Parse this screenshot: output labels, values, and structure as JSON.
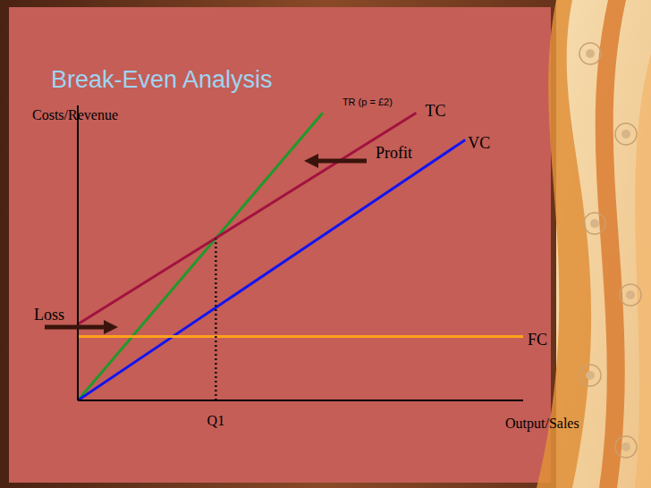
{
  "chart_data": {
    "type": "line",
    "title": "Break-Even Analysis",
    "y_label": "Costs/Revenue",
    "x_label": "Output/Sales",
    "xlim": [
      0,
      100
    ],
    "ylim": [
      0,
      120
    ],
    "xticks": [
      {
        "value": 31,
        "label": "Q1"
      }
    ],
    "yticks": [],
    "tick_labels": "x",
    "grid": false,
    "series": [
      {
        "name": "TR (p = £2)",
        "color": "#1f9a2a",
        "x": [
          0,
          55
        ],
        "values": [
          0,
          117
        ]
      },
      {
        "name": "TC",
        "color": "#a3123f",
        "x": [
          0,
          76
        ],
        "values": [
          31,
          117
        ]
      },
      {
        "name": "VC",
        "color": "#1414f0",
        "x": [
          0,
          87
        ],
        "values": [
          0,
          106
        ]
      },
      {
        "name": "FC",
        "color": "#ffa21a",
        "x": [
          0,
          100
        ],
        "values": [
          26,
          26
        ]
      }
    ],
    "annotations": [
      "Profit",
      "Loss"
    ]
  }
}
